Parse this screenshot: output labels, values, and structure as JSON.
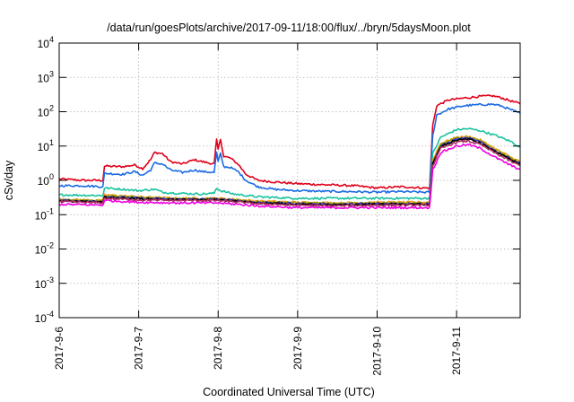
{
  "chart_data": {
    "type": "line",
    "title": "/data/run/goesPlots/archive/2017-09-11/18:00/flux/../bryn/5daysMoon.plot",
    "xlabel": "Coordinated Universal Time (UTC)",
    "ylabel": "cSv/day",
    "y_scale": "log",
    "ylim_exponent": [
      -4,
      4
    ],
    "xlim_days": [
      0,
      5.8
    ],
    "grid": true,
    "legend": "none",
    "x_ticks": [
      {
        "t": 0,
        "label": "2017-9-6"
      },
      {
        "t": 1,
        "label": "2017-9-7"
      },
      {
        "t": 2,
        "label": "2017-9-8"
      },
      {
        "t": 3,
        "label": "2017-9-9"
      },
      {
        "t": 4,
        "label": "2017-9-10"
      },
      {
        "t": 5,
        "label": "2017-9-11"
      }
    ],
    "y_ticks": [
      {
        "e": -4,
        "label": "-4"
      },
      {
        "e": -3,
        "label": "-3"
      },
      {
        "e": -2,
        "label": "-2"
      },
      {
        "e": -1,
        "label": "-1"
      },
      {
        "e": 0,
        "label": "0"
      },
      {
        "e": 1,
        "label": "1"
      },
      {
        "e": 2,
        "label": "2"
      },
      {
        "e": 3,
        "label": "3"
      },
      {
        "e": 4,
        "label": "4"
      }
    ],
    "y_tick_base": "10",
    "series": [
      {
        "color": "#e0001a",
        "points": [
          [
            0,
            1.1
          ],
          [
            0.3,
            1.0
          ],
          [
            0.55,
            1.0
          ],
          [
            0.57,
            2.6
          ],
          [
            0.8,
            2.5
          ],
          [
            0.95,
            2.8
          ],
          [
            1.05,
            2.2
          ],
          [
            1.15,
            4.0
          ],
          [
            1.2,
            6.5
          ],
          [
            1.3,
            6.0
          ],
          [
            1.4,
            3.5
          ],
          [
            1.55,
            3.0
          ],
          [
            1.7,
            4.0
          ],
          [
            1.8,
            3.5
          ],
          [
            1.95,
            3.0
          ],
          [
            1.98,
            15
          ],
          [
            2.0,
            8.0
          ],
          [
            2.03,
            16
          ],
          [
            2.07,
            5.0
          ],
          [
            2.15,
            4.5
          ],
          [
            2.25,
            3.0
          ],
          [
            2.35,
            1.5
          ],
          [
            2.5,
            1.0
          ],
          [
            2.7,
            0.9
          ],
          [
            3.0,
            0.8
          ],
          [
            3.3,
            0.75
          ],
          [
            3.7,
            0.7
          ],
          [
            4.0,
            0.6
          ],
          [
            4.3,
            0.65
          ],
          [
            4.6,
            0.6
          ],
          [
            4.66,
            0.6
          ],
          [
            4.7,
            40
          ],
          [
            4.75,
            150
          ],
          [
            4.9,
            220
          ],
          [
            5.1,
            250
          ],
          [
            5.3,
            280
          ],
          [
            5.45,
            290
          ],
          [
            5.55,
            260
          ],
          [
            5.7,
            200
          ],
          [
            5.8,
            170
          ]
        ]
      },
      {
        "color": "#1b6be3",
        "points": [
          [
            0,
            0.7
          ],
          [
            0.3,
            0.7
          ],
          [
            0.55,
            0.65
          ],
          [
            0.57,
            1.6
          ],
          [
            0.8,
            1.5
          ],
          [
            0.95,
            1.8
          ],
          [
            1.05,
            1.4
          ],
          [
            1.15,
            2.0
          ],
          [
            1.2,
            3.2
          ],
          [
            1.3,
            3.0
          ],
          [
            1.4,
            2.0
          ],
          [
            1.55,
            1.7
          ],
          [
            1.7,
            2.0
          ],
          [
            1.8,
            1.8
          ],
          [
            1.95,
            1.7
          ],
          [
            1.98,
            6.5
          ],
          [
            2.0,
            3.5
          ],
          [
            2.03,
            6.0
          ],
          [
            2.07,
            2.5
          ],
          [
            2.15,
            2.4
          ],
          [
            2.25,
            1.8
          ],
          [
            2.35,
            1.0
          ],
          [
            2.5,
            0.65
          ],
          [
            2.7,
            0.55
          ],
          [
            3.0,
            0.5
          ],
          [
            3.3,
            0.48
          ],
          [
            3.7,
            0.47
          ],
          [
            4.0,
            0.45
          ],
          [
            4.3,
            0.47
          ],
          [
            4.6,
            0.45
          ],
          [
            4.66,
            0.45
          ],
          [
            4.7,
            20
          ],
          [
            4.75,
            80
          ],
          [
            4.9,
            120
          ],
          [
            5.1,
            150
          ],
          [
            5.3,
            160
          ],
          [
            5.45,
            165
          ],
          [
            5.55,
            150
          ],
          [
            5.7,
            110
          ],
          [
            5.8,
            90
          ]
        ]
      },
      {
        "color": "#19c2a0",
        "points": [
          [
            0,
            0.38
          ],
          [
            0.3,
            0.37
          ],
          [
            0.55,
            0.36
          ],
          [
            0.57,
            0.6
          ],
          [
            0.8,
            0.55
          ],
          [
            1.0,
            0.5
          ],
          [
            1.2,
            0.55
          ],
          [
            1.3,
            0.45
          ],
          [
            1.5,
            0.42
          ],
          [
            1.8,
            0.4
          ],
          [
            1.95,
            0.42
          ],
          [
            1.98,
            0.6
          ],
          [
            2.03,
            0.5
          ],
          [
            2.2,
            0.4
          ],
          [
            2.5,
            0.33
          ],
          [
            3.0,
            0.3
          ],
          [
            3.5,
            0.3
          ],
          [
            4.0,
            0.3
          ],
          [
            4.6,
            0.3
          ],
          [
            4.66,
            0.3
          ],
          [
            4.7,
            6.0
          ],
          [
            4.8,
            18
          ],
          [
            5.0,
            30
          ],
          [
            5.15,
            32
          ],
          [
            5.3,
            28
          ],
          [
            5.5,
            20
          ],
          [
            5.7,
            13
          ],
          [
            5.8,
            9.0
          ]
        ]
      },
      {
        "color": "#f0a020",
        "points": [
          [
            0,
            0.28
          ],
          [
            0.55,
            0.26
          ],
          [
            0.57,
            0.38
          ],
          [
            1.0,
            0.33
          ],
          [
            1.5,
            0.3
          ],
          [
            2.0,
            0.3
          ],
          [
            2.5,
            0.25
          ],
          [
            3.0,
            0.23
          ],
          [
            3.5,
            0.22
          ],
          [
            4.0,
            0.23
          ],
          [
            4.6,
            0.23
          ],
          [
            4.66,
            0.23
          ],
          [
            4.7,
            4.0
          ],
          [
            4.8,
            12
          ],
          [
            5.0,
            18
          ],
          [
            5.15,
            19
          ],
          [
            5.3,
            15
          ],
          [
            5.5,
            8.0
          ],
          [
            5.7,
            4.5
          ],
          [
            5.8,
            3.5
          ]
        ]
      },
      {
        "color": "#a0a000",
        "points": [
          [
            0,
            0.27
          ],
          [
            0.55,
            0.25
          ],
          [
            0.57,
            0.36
          ],
          [
            1.0,
            0.32
          ],
          [
            1.5,
            0.29
          ],
          [
            2.0,
            0.29
          ],
          [
            2.5,
            0.24
          ],
          [
            3.0,
            0.22
          ],
          [
            3.5,
            0.21
          ],
          [
            4.0,
            0.22
          ],
          [
            4.6,
            0.22
          ],
          [
            4.66,
            0.22
          ],
          [
            4.7,
            3.5
          ],
          [
            4.8,
            11
          ],
          [
            5.0,
            17
          ],
          [
            5.15,
            18
          ],
          [
            5.3,
            14
          ],
          [
            5.5,
            7.5
          ],
          [
            5.7,
            4.2
          ],
          [
            5.8,
            3.3
          ]
        ]
      },
      {
        "color": "#3030c0",
        "points": [
          [
            0,
            0.26
          ],
          [
            0.55,
            0.24
          ],
          [
            0.57,
            0.34
          ],
          [
            1.0,
            0.3
          ],
          [
            1.5,
            0.28
          ],
          [
            2.0,
            0.28
          ],
          [
            2.5,
            0.23
          ],
          [
            3.0,
            0.21
          ],
          [
            3.5,
            0.2
          ],
          [
            4.0,
            0.21
          ],
          [
            4.6,
            0.21
          ],
          [
            4.66,
            0.21
          ],
          [
            4.7,
            3.2
          ],
          [
            4.8,
            10
          ],
          [
            5.0,
            16
          ],
          [
            5.15,
            17
          ],
          [
            5.3,
            13
          ],
          [
            5.5,
            7.0
          ],
          [
            5.7,
            4.0
          ],
          [
            5.8,
            3.1
          ]
        ]
      },
      {
        "color": "#000000",
        "points": [
          [
            0,
            0.25
          ],
          [
            0.55,
            0.23
          ],
          [
            0.57,
            0.32
          ],
          [
            1.0,
            0.29
          ],
          [
            1.5,
            0.27
          ],
          [
            2.0,
            0.27
          ],
          [
            2.5,
            0.22
          ],
          [
            3.0,
            0.2
          ],
          [
            3.5,
            0.19
          ],
          [
            4.0,
            0.2
          ],
          [
            4.6,
            0.2
          ],
          [
            4.66,
            0.2
          ],
          [
            4.7,
            3.0
          ],
          [
            4.8,
            9.5
          ],
          [
            5.0,
            15
          ],
          [
            5.15,
            16
          ],
          [
            5.3,
            12
          ],
          [
            5.5,
            6.5
          ],
          [
            5.7,
            3.8
          ],
          [
            5.8,
            3.0
          ]
        ]
      },
      {
        "color": "#b03060",
        "points": [
          [
            0,
            0.24
          ],
          [
            0.55,
            0.22
          ],
          [
            0.57,
            0.3
          ],
          [
            1.0,
            0.27
          ],
          [
            1.5,
            0.26
          ],
          [
            2.0,
            0.26
          ],
          [
            2.5,
            0.21
          ],
          [
            3.0,
            0.19
          ],
          [
            3.5,
            0.18
          ],
          [
            4.0,
            0.19
          ],
          [
            4.6,
            0.19
          ],
          [
            4.66,
            0.19
          ],
          [
            4.7,
            2.6
          ],
          [
            4.8,
            8.5
          ],
          [
            5.0,
            13
          ],
          [
            5.15,
            14
          ],
          [
            5.3,
            11
          ],
          [
            5.5,
            6.0
          ],
          [
            5.7,
            3.4
          ],
          [
            5.8,
            2.7
          ]
        ]
      },
      {
        "color": "#f000e0",
        "points": [
          [
            0,
            0.2
          ],
          [
            0.55,
            0.19
          ],
          [
            0.57,
            0.26
          ],
          [
            1.0,
            0.23
          ],
          [
            1.5,
            0.22
          ],
          [
            2.0,
            0.22
          ],
          [
            2.5,
            0.18
          ],
          [
            3.0,
            0.16
          ],
          [
            3.5,
            0.16
          ],
          [
            4.0,
            0.16
          ],
          [
            4.6,
            0.16
          ],
          [
            4.66,
            0.16
          ],
          [
            4.7,
            2.0
          ],
          [
            4.8,
            6.5
          ],
          [
            5.0,
            10
          ],
          [
            5.15,
            11
          ],
          [
            5.3,
            8.5
          ],
          [
            5.5,
            4.5
          ],
          [
            5.7,
            2.6
          ],
          [
            5.8,
            2.1
          ]
        ]
      }
    ]
  }
}
